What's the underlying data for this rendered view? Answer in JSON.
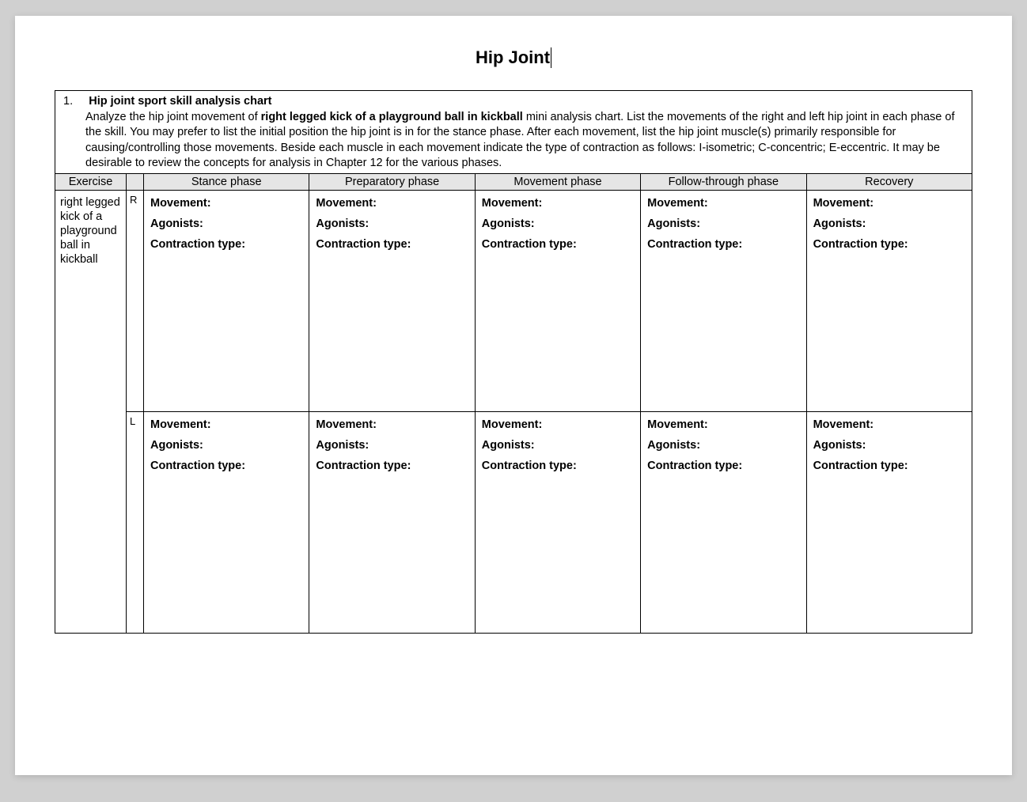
{
  "title": "Hip Joint",
  "instructions": {
    "number": "1.",
    "heading": "Hip joint sport skill analysis chart",
    "line1_pre": "Analyze the hip joint movement of ",
    "line1_bold": "right legged kick of a playground ball in kickball",
    "line1_post": " mini analysis chart.  List the movements of the right and left hip joint in each phase of the skill. You may prefer to list the initial position the hip joint is in for the stance phase. After each movement, list the hip joint muscle(s) primarily responsible for causing/controlling those movements. Beside each muscle in each movement indicate the type of contraction as follows: I-isometric; C-concentric; E-eccentric. It may be desirable to review the concepts for analysis in Chapter 12 for the various phases."
  },
  "headers": {
    "exercise": "Exercise",
    "stance": "Stance phase",
    "preparatory": "Preparatory phase",
    "movement": "Movement phase",
    "followthrough": "Follow-through phase",
    "recovery": "Recovery"
  },
  "exercise_label": "right legged kick of a playground ball in kickball",
  "sides": {
    "r": "R",
    "l": "L"
  },
  "labels": {
    "movement": "Movement:",
    "agonists": "Agonists:",
    "contraction": "Contraction type:"
  },
  "colors": {
    "page_bg": "#ffffff",
    "body_bg": "#d0d0d0",
    "header_bg": "#e5e5e5",
    "border": "#000000",
    "text": "#000000"
  }
}
